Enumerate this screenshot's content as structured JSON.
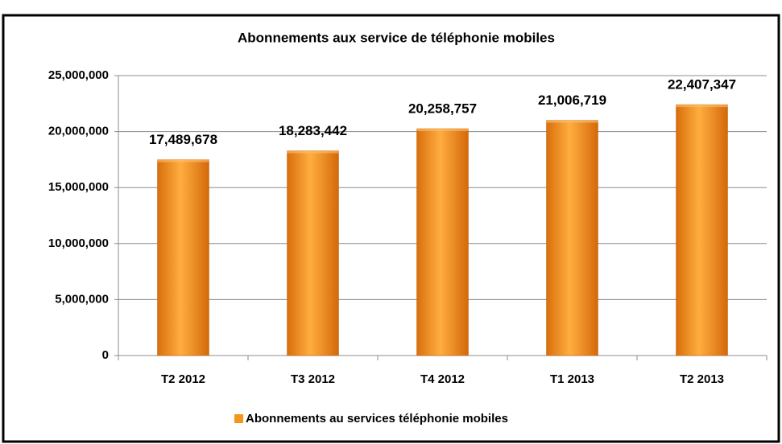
{
  "chart_data": {
    "type": "bar",
    "title": "Abonnements aux service de téléphonie mobiles",
    "categories": [
      "T2 2012",
      "T3 2012",
      "T4 2012",
      "T1 2013",
      "T2 2013"
    ],
    "series": [
      {
        "name": "Abonnements au services téléphonie mobiles",
        "color": "#f7941d",
        "values": [
          17489678,
          18283442,
          20258757,
          21006719,
          22407347
        ],
        "value_labels": [
          "17,489,678",
          "18,283,442",
          "20,258,757",
          "21,006,719",
          "22,407,347"
        ]
      }
    ],
    "ylim": [
      0,
      25000000
    ],
    "yticks": [
      0,
      {
        "value": 5000000,
        "label": "5,000,000"
      },
      {
        "value": 10000000,
        "label": "10,000,000"
      },
      {
        "value": 15000000,
        "label": "15,000,000"
      },
      {
        "value": 20000000,
        "label": "20,000,000"
      },
      {
        "value": 25000000,
        "label": "25,000,000"
      }
    ],
    "grid": true,
    "legend": "bottom"
  }
}
